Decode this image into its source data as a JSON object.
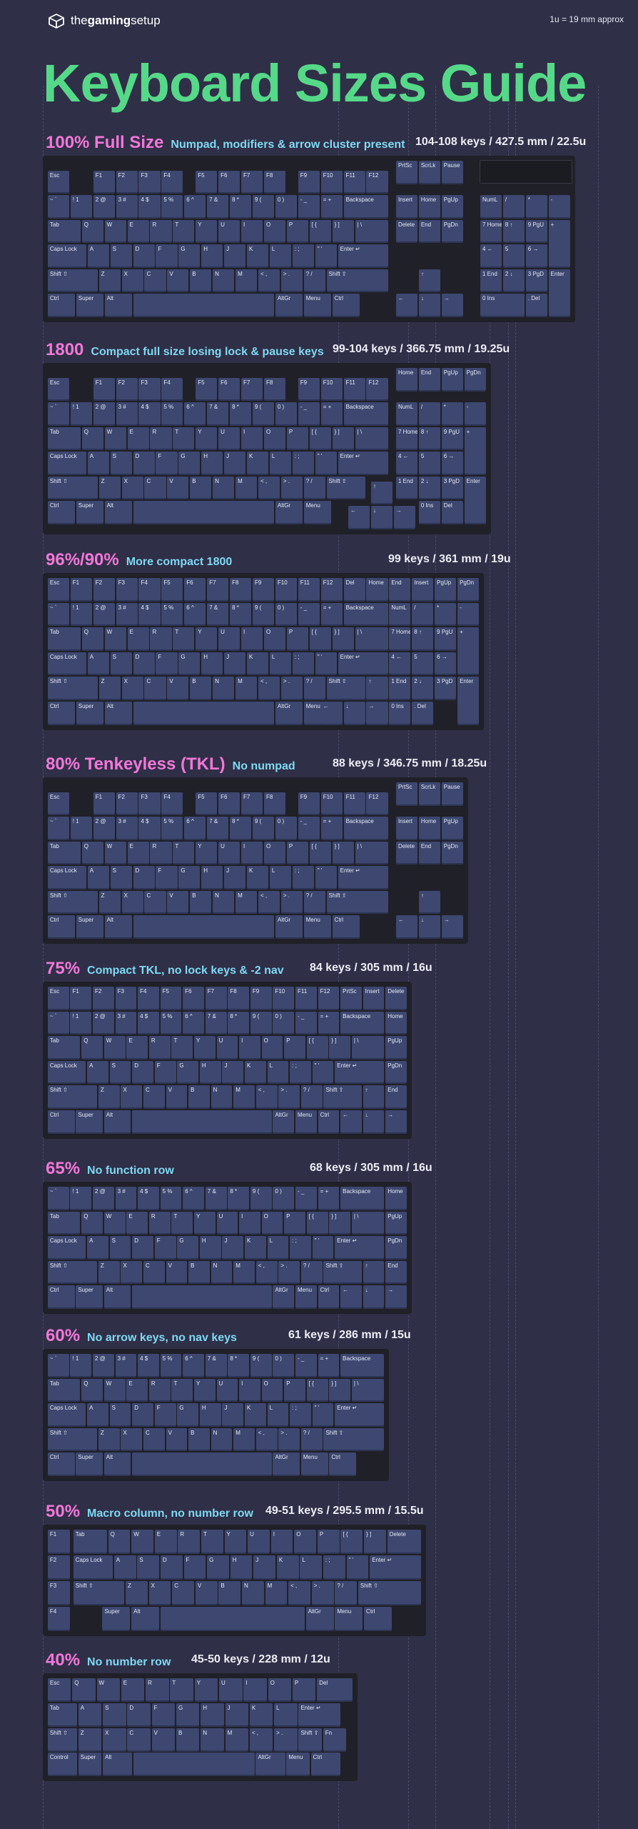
{
  "brand": {
    "name_prefix": "the",
    "name_bold": "gaming",
    "name_suffix": "setup",
    "logo_icon": "cube-logo-icon"
  },
  "unit_note": "1u = 19 mm approx",
  "title": "Keyboard Sizes Guide",
  "colors": {
    "background": "#2f2f47",
    "title": "#55d988",
    "size_label": "#f277d8",
    "description": "#7fd9f2",
    "key": "#3d4770",
    "board": "#202028"
  },
  "sections": [
    {
      "id": "full",
      "size": "100% Full Size",
      "description": "Numpad, modifiers & arrow cluster present",
      "spec": "104-108 keys / 427.5 mm / 22.5u"
    },
    {
      "id": "s1800",
      "size": "1800",
      "description": "Compact full size losing lock & pause keys",
      "spec": "99-104 keys / 366.75 mm / 19.25u"
    },
    {
      "id": "s96",
      "size": "96%/90%",
      "description": "More compact 1800",
      "spec": "99 keys /  361 mm / 19u"
    },
    {
      "id": "tkl",
      "size": "80% Tenkeyless (TKL)",
      "description": "No numpad",
      "spec": "88 keys / 346.75 mm / 18.25u"
    },
    {
      "id": "s75",
      "size": "75%",
      "description": "Compact TKL, no lock keys & -2 nav",
      "spec": "84 keys / 305 mm / 16u"
    },
    {
      "id": "s65",
      "size": "65%",
      "description": "No function row",
      "spec": "68 keys / 305 mm / 16u"
    },
    {
      "id": "s60",
      "size": "60%",
      "description": "No arrow keys, no nav keys",
      "spec": "61 keys / 286 mm / 15u"
    },
    {
      "id": "s50",
      "size": "50%",
      "description": "Macro column, no number row",
      "spec": "49-51 keys / 295.5 mm / 15.5u"
    },
    {
      "id": "s40",
      "size": "40%",
      "description": "No number row",
      "spec": "45-50 keys / 228 mm / 12u"
    }
  ],
  "legends": {
    "fn": [
      "F1",
      "F2",
      "F3",
      "F4",
      "F5",
      "F6",
      "F7",
      "F8",
      "F9",
      "F10",
      "F11",
      "F12"
    ],
    "num": [
      "~ `",
      "! 1",
      "2 @",
      "3 #",
      "4 $",
      "5 %",
      "6 ^",
      "7 &",
      "8 *",
      "9 (",
      "0 )",
      "- _",
      "= +"
    ],
    "top": [
      "Tab",
      "Q",
      "W",
      "E",
      "R",
      "T",
      "Y",
      "U",
      "I",
      "O",
      "P",
      "[ {",
      "} ]",
      "| \\"
    ],
    "home": [
      "Caps Lock",
      "A",
      "S",
      "D",
      "F",
      "G",
      "H",
      "J",
      "K",
      "L",
      ": ;",
      "\" '",
      "Enter ↵"
    ],
    "shift": [
      "Shift ⇧",
      "Z",
      "X",
      "C",
      "V",
      "B",
      "N",
      "M",
      "< ,",
      "> .",
      "? /",
      "Shift ⇧"
    ],
    "esc": "Esc",
    "backspace": "Backspace",
    "ctrl": "Ctrl",
    "super": "Super",
    "alt": "Alt",
    "altgr": "AltGr",
    "menu": "Menu",
    "control": "Control",
    "fn_key": "Fn",
    "prtsc": "PrtSc",
    "scrlk": "ScrLk",
    "pause": "Pause",
    "insert": "Insert",
    "home_key": "Home",
    "pgup": "PgUp",
    "delete": "Delete",
    "end": "End",
    "pgdn": "PgDn",
    "del": "Del",
    "numlk": "NumL",
    "numslash": "/",
    "numstar": "*",
    "numminus": "-",
    "numplus": "+",
    "numenter": "Enter",
    "n7": "7 Home",
    "n8": "8 ↑",
    "n9": "9 PgU",
    "n4": "4 ←",
    "n5": "5",
    "n6": "6 →",
    "n1": "1 End",
    "n2": "2 ↓",
    "n3": "3 PgD",
    "n0": "0 Ins",
    "ndot": ". Del",
    "up": "↑",
    "down": "↓",
    "left": "←",
    "right": "→",
    "macro": [
      "F1",
      "F2",
      "F3",
      "F4"
    ]
  }
}
